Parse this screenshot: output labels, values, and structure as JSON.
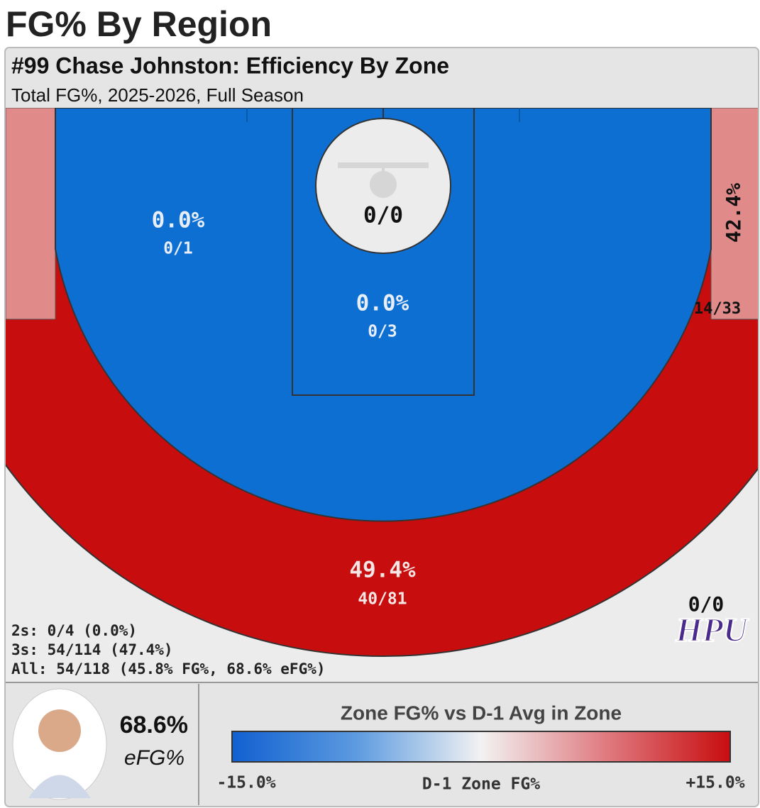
{
  "header": {
    "title": "FG% By Region",
    "subtitle": "#99 Chase Johnston: Efficiency By Zone",
    "caption": "Total FG%, 2025-2026, Full Season"
  },
  "zones": {
    "left_midrange": {
      "pct": "0.0%",
      "made": "0/1"
    },
    "paint": {
      "pct": "0.0%",
      "made": "0/3"
    },
    "rim": {
      "made": "0/0"
    },
    "right_corner_three": {
      "pct": "42.4%",
      "made": "14/33"
    },
    "above_break_three": {
      "pct": "49.4%",
      "made": "40/81"
    },
    "deep": {
      "made": "0/0"
    }
  },
  "summary": [
    "2s: 0/4 (0.0%)",
    "3s: 54/114 (47.4%)",
    "All: 54/118 (45.8% FG%, 68.6% eFG%)"
  ],
  "logo": "HPU",
  "player": {
    "efg": "68.6%",
    "efg_label": "eFG%"
  },
  "legend": {
    "title": "Zone FG% vs D-1 Avg in Zone",
    "min_label": "-15.0%",
    "center_label": "D-1 Zone FG%",
    "max_label": "+15.0%"
  }
}
